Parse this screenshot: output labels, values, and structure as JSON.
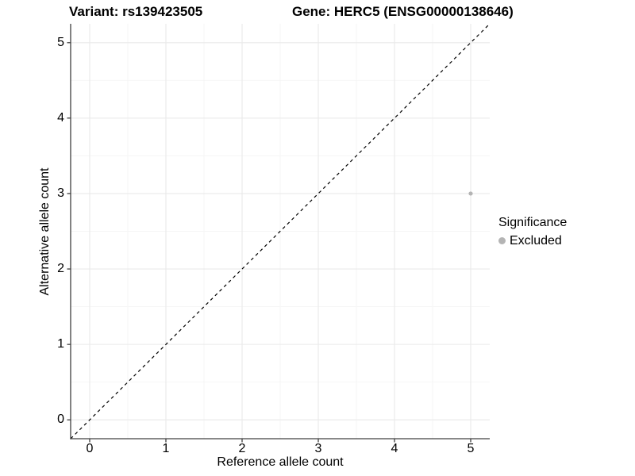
{
  "title": {
    "left": "Variant: rs139423505",
    "right": "Gene: HERC5 (ENSG00000138646)"
  },
  "axes": {
    "x_label": "Reference allele count",
    "y_label": "Alternative allele count"
  },
  "legend": {
    "title": "Significance",
    "items": [
      {
        "label": "Excluded",
        "color": "#b4b4b4"
      }
    ]
  },
  "colors": {
    "background": "#ffffff",
    "grid_major": "#e9e9e9",
    "grid_minor": "#f5f5f5",
    "axis_line": "#404040",
    "dashed_line": "#000000",
    "point": "#b4b4b4",
    "text": "#000000"
  },
  "chart_data": {
    "type": "scatter",
    "title": "Variant: rs139423505    Gene: HERC5 (ENSG00000138646)",
    "xlabel": "Reference allele count",
    "ylabel": "Alternative allele count",
    "xlim": [
      -0.25,
      5.25
    ],
    "ylim": [
      -0.25,
      5.25
    ],
    "x_ticks": [
      0,
      1,
      2,
      3,
      4,
      5
    ],
    "y_ticks": [
      0,
      1,
      2,
      3,
      4,
      5
    ],
    "grid": "major+minor",
    "legend_position": "right",
    "reference_line": {
      "kind": "identity",
      "equation": "y = x",
      "style": "dashed"
    },
    "series": [
      {
        "name": "Excluded",
        "points": [
          {
            "x": 5,
            "y": 3
          }
        ]
      }
    ]
  }
}
